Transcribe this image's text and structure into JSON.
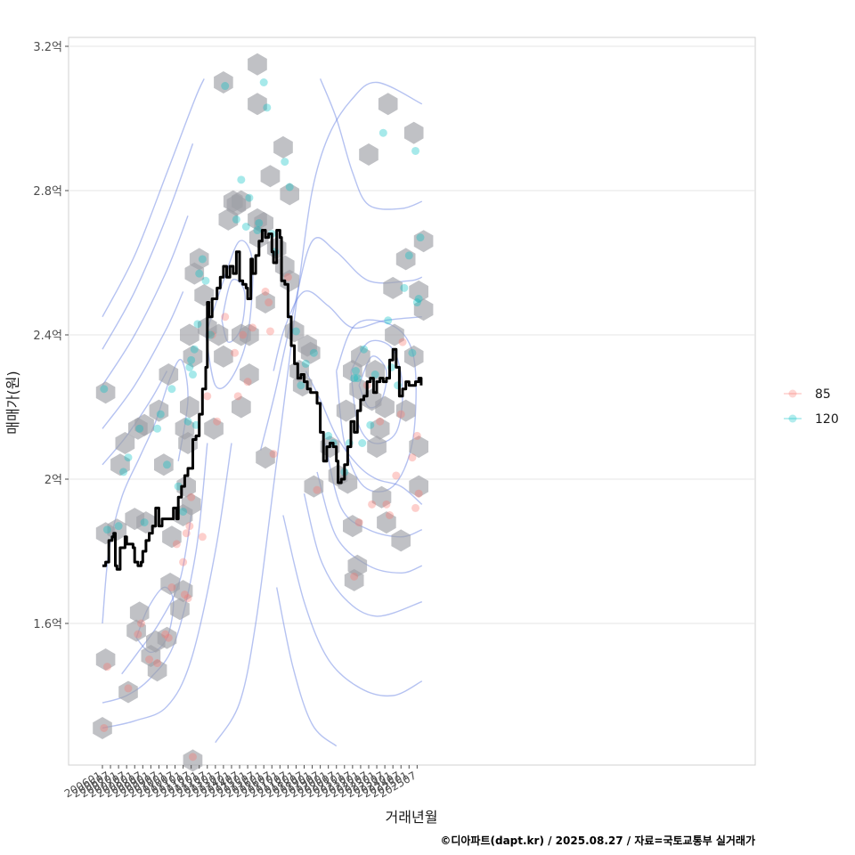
{
  "chart_data": {
    "type": "line",
    "xlabel": "거래년월",
    "ylabel": "매매가(원)",
    "caption": "©디아파트(dapt.kr) / 2025.08.27 / 자료=국토교통부 실거래가",
    "ylim": [
      1.25,
      3.22
    ],
    "y_ticks": [
      {
        "value": 1.6,
        "label": "1.6억"
      },
      {
        "value": 2.0,
        "label": "2억"
      },
      {
        "value": 2.4,
        "label": "2.4억"
      },
      {
        "value": 2.8,
        "label": "2.8억"
      },
      {
        "value": 3.2,
        "label": "3.2억"
      }
    ],
    "x_range": [
      2005.75,
      2026.05
    ],
    "x_tick_labels": [
      "200601",
      "200607",
      "200701",
      "200707",
      "200801",
      "200807",
      "200901",
      "200907",
      "201001",
      "201007",
      "201101",
      "201107",
      "201201",
      "201207",
      "201301",
      "201307",
      "201401",
      "201407",
      "201501",
      "201507",
      "201601",
      "201607",
      "201701",
      "201707",
      "201801",
      "201807",
      "201901",
      "201907",
      "202001",
      "202007",
      "202101",
      "202107",
      "202201",
      "202207",
      "202301",
      "202307",
      "202401",
      "202407",
      "202501",
      "202507"
    ],
    "grid": true,
    "legend": {
      "position": "right",
      "entries": [
        {
          "label": "85",
          "color": "#F8766D"
        },
        {
          "label": "120",
          "color": "#00BFC4"
        }
      ]
    },
    "colors": {
      "hex_fill": "#9ea0a6",
      "contour": "#5a78e0",
      "trend": "#000000"
    },
    "trend_line": [
      [
        2006.0,
        1.76
      ],
      [
        2006.2,
        1.77
      ],
      [
        2006.4,
        1.83
      ],
      [
        2006.6,
        1.84
      ],
      [
        2006.7,
        1.85
      ],
      [
        2006.8,
        1.76
      ],
      [
        2006.9,
        1.75
      ],
      [
        2007.1,
        1.81
      ],
      [
        2007.4,
        1.84
      ],
      [
        2007.5,
        1.82
      ],
      [
        2007.9,
        1.81
      ],
      [
        2008.0,
        1.77
      ],
      [
        2008.2,
        1.76
      ],
      [
        2008.4,
        1.77
      ],
      [
        2008.5,
        1.8
      ],
      [
        2008.7,
        1.83
      ],
      [
        2008.9,
        1.85
      ],
      [
        2009.1,
        1.87
      ],
      [
        2009.3,
        1.92
      ],
      [
        2009.5,
        1.87
      ],
      [
        2009.7,
        1.89
      ],
      [
        2010.2,
        1.89
      ],
      [
        2010.4,
        1.92
      ],
      [
        2010.6,
        1.89
      ],
      [
        2010.7,
        1.95
      ],
      [
        2010.9,
        1.98
      ],
      [
        2011.1,
        2.01
      ],
      [
        2011.3,
        2.03
      ],
      [
        2011.6,
        2.11
      ],
      [
        2011.8,
        2.12
      ],
      [
        2012.0,
        2.18
      ],
      [
        2012.2,
        2.25
      ],
      [
        2012.4,
        2.31
      ],
      [
        2012.5,
        2.49
      ],
      [
        2012.6,
        2.45
      ],
      [
        2012.8,
        2.5
      ],
      [
        2013.1,
        2.53
      ],
      [
        2013.3,
        2.56
      ],
      [
        2013.5,
        2.59
      ],
      [
        2013.7,
        2.56
      ],
      [
        2013.9,
        2.59
      ],
      [
        2014.1,
        2.57
      ],
      [
        2014.3,
        2.63
      ],
      [
        2014.5,
        2.55
      ],
      [
        2014.7,
        2.54
      ],
      [
        2014.9,
        2.53
      ],
      [
        2015.0,
        2.5
      ],
      [
        2015.2,
        2.61
      ],
      [
        2015.3,
        2.57
      ],
      [
        2015.5,
        2.62
      ],
      [
        2015.7,
        2.66
      ],
      [
        2015.9,
        2.69
      ],
      [
        2016.1,
        2.67
      ],
      [
        2016.3,
        2.68
      ],
      [
        2016.5,
        2.63
      ],
      [
        2016.6,
        2.6
      ],
      [
        2016.8,
        2.69
      ],
      [
        2017.0,
        2.67
      ],
      [
        2017.1,
        2.55
      ],
      [
        2017.3,
        2.54
      ],
      [
        2017.5,
        2.45
      ],
      [
        2017.7,
        2.37
      ],
      [
        2017.9,
        2.32
      ],
      [
        2018.1,
        2.28
      ],
      [
        2018.3,
        2.29
      ],
      [
        2018.5,
        2.27
      ],
      [
        2018.7,
        2.25
      ],
      [
        2018.9,
        2.24
      ],
      [
        2019.0,
        2.24
      ],
      [
        2019.3,
        2.21
      ],
      [
        2019.5,
        2.13
      ],
      [
        2019.7,
        2.05
      ],
      [
        2019.9,
        2.09
      ],
      [
        2020.1,
        2.1
      ],
      [
        2020.3,
        2.09
      ],
      [
        2020.5,
        2.05
      ],
      [
        2020.6,
        1.99
      ],
      [
        2020.8,
        2.0
      ],
      [
        2021.0,
        2.04
      ],
      [
        2021.2,
        2.09
      ],
      [
        2021.4,
        2.16
      ],
      [
        2021.6,
        2.13
      ],
      [
        2021.8,
        2.19
      ],
      [
        2022.0,
        2.22
      ],
      [
        2022.2,
        2.23
      ],
      [
        2022.4,
        2.27
      ],
      [
        2022.6,
        2.28
      ],
      [
        2022.8,
        2.24
      ],
      [
        2023.0,
        2.27
      ],
      [
        2023.2,
        2.28
      ],
      [
        2023.4,
        2.27
      ],
      [
        2023.6,
        2.28
      ],
      [
        2023.8,
        2.33
      ],
      [
        2024.0,
        2.36
      ],
      [
        2024.2,
        2.31
      ],
      [
        2024.4,
        2.23
      ],
      [
        2024.6,
        2.25
      ],
      [
        2024.8,
        2.27
      ],
      [
        2025.0,
        2.26
      ],
      [
        2025.2,
        2.26
      ],
      [
        2025.4,
        2.27
      ],
      [
        2025.6,
        2.28
      ],
      [
        2025.75,
        2.26
      ]
    ],
    "points_85": [
      [
        2006.1,
        1.31
      ],
      [
        2006.3,
        1.48
      ],
      [
        2007.6,
        1.42
      ],
      [
        2008.2,
        1.57
      ],
      [
        2008.4,
        1.6
      ],
      [
        2008.9,
        1.5
      ],
      [
        2009.4,
        1.49
      ],
      [
        2009.9,
        1.57
      ],
      [
        2010.1,
        1.56
      ],
      [
        2010.3,
        1.7
      ],
      [
        2010.6,
        1.82
      ],
      [
        2011.0,
        1.77
      ],
      [
        2011.2,
        1.85
      ],
      [
        2011.4,
        1.87
      ],
      [
        2011.1,
        1.68
      ],
      [
        2011.3,
        1.67
      ],
      [
        2011.5,
        1.95
      ],
      [
        2011.6,
        1.23
      ],
      [
        2012.2,
        1.84
      ],
      [
        2012.5,
        2.23
      ],
      [
        2012.8,
        2.4
      ],
      [
        2013.1,
        2.16
      ],
      [
        2013.6,
        2.45
      ],
      [
        2014.2,
        2.35
      ],
      [
        2014.4,
        2.23
      ],
      [
        2014.7,
        2.4
      ],
      [
        2015.0,
        2.27
      ],
      [
        2015.3,
        2.42
      ],
      [
        2016.1,
        2.52
      ],
      [
        2016.3,
        2.49
      ],
      [
        2016.4,
        2.41
      ],
      [
        2016.6,
        2.07
      ],
      [
        2017.5,
        2.56
      ],
      [
        2019.3,
        1.97
      ],
      [
        2021.6,
        1.73
      ],
      [
        2021.9,
        1.88
      ],
      [
        2022.4,
        2.26
      ],
      [
        2022.7,
        1.93
      ],
      [
        2023.2,
        2.16
      ],
      [
        2023.6,
        1.93
      ],
      [
        2023.8,
        1.9
      ],
      [
        2024.2,
        2.01
      ],
      [
        2024.5,
        2.18
      ],
      [
        2024.6,
        2.38
      ],
      [
        2025.2,
        2.06
      ],
      [
        2025.4,
        1.92
      ],
      [
        2025.5,
        2.12
      ],
      [
        2025.6,
        1.96
      ]
    ],
    "points_120": [
      [
        2006.1,
        2.25
      ],
      [
        2006.3,
        1.86
      ],
      [
        2007.0,
        1.87
      ],
      [
        2007.3,
        2.02
      ],
      [
        2007.6,
        2.06
      ],
      [
        2008.3,
        2.14
      ],
      [
        2008.6,
        1.88
      ],
      [
        2009.4,
        2.14
      ],
      [
        2009.6,
        2.18
      ],
      [
        2010.0,
        2.04
      ],
      [
        2010.3,
        2.25
      ],
      [
        2010.7,
        1.98
      ],
      [
        2011.0,
        1.91
      ],
      [
        2011.3,
        2.16
      ],
      [
        2011.4,
        2.31
      ],
      [
        2011.5,
        2.33
      ],
      [
        2011.6,
        2.29
      ],
      [
        2011.7,
        2.36
      ],
      [
        2011.8,
        2.15
      ],
      [
        2011.9,
        2.43
      ],
      [
        2012.0,
        2.57
      ],
      [
        2012.2,
        2.61
      ],
      [
        2012.4,
        2.55
      ],
      [
        2012.7,
        2.4
      ],
      [
        2013.6,
        3.09
      ],
      [
        2014.3,
        2.72
      ],
      [
        2014.6,
        2.83
      ],
      [
        2014.9,
        2.7
      ],
      [
        2015.1,
        2.78
      ],
      [
        2015.6,
        2.69
      ],
      [
        2015.7,
        2.71
      ],
      [
        2016.0,
        3.1
      ],
      [
        2016.2,
        3.03
      ],
      [
        2016.5,
        2.68
      ],
      [
        2016.7,
        2.63
      ],
      [
        2017.3,
        2.88
      ],
      [
        2017.6,
        2.81
      ],
      [
        2018.0,
        2.41
      ],
      [
        2018.3,
        2.26
      ],
      [
        2018.6,
        2.32
      ],
      [
        2019.1,
        2.35
      ],
      [
        2020.0,
        2.12
      ],
      [
        2020.3,
        2.1
      ],
      [
        2021.0,
        2.02
      ],
      [
        2021.3,
        2.1
      ],
      [
        2021.6,
        2.28
      ],
      [
        2021.7,
        2.3
      ],
      [
        2021.8,
        2.28
      ],
      [
        2022.1,
        2.1
      ],
      [
        2022.2,
        2.36
      ],
      [
        2022.6,
        2.15
      ],
      [
        2022.9,
        2.29
      ],
      [
        2023.4,
        2.96
      ],
      [
        2023.7,
        2.44
      ],
      [
        2023.9,
        2.31
      ],
      [
        2024.3,
        2.26
      ],
      [
        2024.7,
        2.53
      ],
      [
        2025.0,
        2.62
      ],
      [
        2025.2,
        2.35
      ],
      [
        2025.4,
        2.91
      ],
      [
        2025.5,
        2.49
      ],
      [
        2025.7,
        2.67
      ],
      [
        2025.6,
        2.5
      ]
    ],
    "hexbins": [
      [
        2006.0,
        1.31
      ],
      [
        2006.2,
        1.5
      ],
      [
        2006.2,
        1.85
      ],
      [
        2006.2,
        2.24
      ],
      [
        2006.9,
        1.86
      ],
      [
        2007.1,
        2.04
      ],
      [
        2007.4,
        2.1
      ],
      [
        2007.6,
        1.41
      ],
      [
        2008.1,
        1.58
      ],
      [
        2008.3,
        1.63
      ],
      [
        2008.0,
        1.89
      ],
      [
        2008.2,
        2.14
      ],
      [
        2008.6,
        2.15
      ],
      [
        2008.7,
        1.88
      ],
      [
        2009.0,
        1.51
      ],
      [
        2009.3,
        1.55
      ],
      [
        2009.4,
        1.47
      ],
      [
        2009.5,
        2.19
      ],
      [
        2009.8,
        2.04
      ],
      [
        2010.0,
        1.56
      ],
      [
        2010.2,
        1.71
      ],
      [
        2010.1,
        2.29
      ],
      [
        2010.3,
        1.84
      ],
      [
        2010.8,
        1.64
      ],
      [
        2011.0,
        1.69
      ],
      [
        2011.0,
        1.9
      ],
      [
        2011.1,
        2.14
      ],
      [
        2011.2,
        1.98
      ],
      [
        2011.3,
        2.1
      ],
      [
        2011.4,
        2.2
      ],
      [
        2011.6,
        2.34
      ],
      [
        2011.4,
        2.4
      ],
      [
        2011.5,
        1.93
      ],
      [
        2011.7,
        2.57
      ],
      [
        2012.0,
        2.61
      ],
      [
        2011.6,
        1.22
      ],
      [
        2012.3,
        2.51
      ],
      [
        2012.5,
        2.42
      ],
      [
        2012.9,
        2.14
      ],
      [
        2013.2,
        2.4
      ],
      [
        2013.5,
        2.34
      ],
      [
        2013.5,
        3.1
      ],
      [
        2013.8,
        2.72
      ],
      [
        2014.1,
        2.77
      ],
      [
        2014.3,
        2.76
      ],
      [
        2014.6,
        2.77
      ],
      [
        2014.6,
        2.4
      ],
      [
        2014.6,
        2.2
      ],
      [
        2015.1,
        2.29
      ],
      [
        2015.1,
        2.4
      ],
      [
        2015.6,
        3.15
      ],
      [
        2015.6,
        3.04
      ],
      [
        2015.6,
        2.72
      ],
      [
        2015.7,
        2.67
      ],
      [
        2016.0,
        2.71
      ],
      [
        2016.1,
        2.49
      ],
      [
        2016.1,
        2.06
      ],
      [
        2016.4,
        2.84
      ],
      [
        2016.8,
        2.64
      ],
      [
        2017.2,
        2.92
      ],
      [
        2017.3,
        2.59
      ],
      [
        2017.6,
        2.79
      ],
      [
        2017.6,
        2.55
      ],
      [
        2017.9,
        2.41
      ],
      [
        2018.2,
        2.3
      ],
      [
        2018.4,
        2.26
      ],
      [
        2018.7,
        2.37
      ],
      [
        2018.9,
        2.35
      ],
      [
        2019.1,
        1.98
      ],
      [
        2020.1,
        2.09
      ],
      [
        2020.6,
        2.01
      ],
      [
        2021.1,
        2.19
      ],
      [
        2021.2,
        1.99
      ],
      [
        2021.5,
        1.87
      ],
      [
        2021.5,
        2.3
      ],
      [
        2021.6,
        1.72
      ],
      [
        2021.8,
        1.76
      ],
      [
        2021.9,
        2.25
      ],
      [
        2022.0,
        2.34
      ],
      [
        2022.5,
        2.9
      ],
      [
        2022.7,
        2.22
      ],
      [
        2022.9,
        2.3
      ],
      [
        2023.0,
        2.09
      ],
      [
        2023.2,
        2.14
      ],
      [
        2023.3,
        1.95
      ],
      [
        2023.5,
        2.2
      ],
      [
        2023.6,
        1.88
      ],
      [
        2023.7,
        3.04
      ],
      [
        2024.0,
        2.53
      ],
      [
        2024.1,
        2.4
      ],
      [
        2024.5,
        1.83
      ],
      [
        2024.8,
        2.61
      ],
      [
        2024.8,
        2.19
      ],
      [
        2025.3,
        2.34
      ],
      [
        2025.3,
        2.96
      ],
      [
        2025.6,
        2.52
      ],
      [
        2025.6,
        2.09
      ],
      [
        2025.6,
        1.98
      ],
      [
        2025.9,
        2.66
      ],
      [
        2025.9,
        2.47
      ]
    ]
  }
}
